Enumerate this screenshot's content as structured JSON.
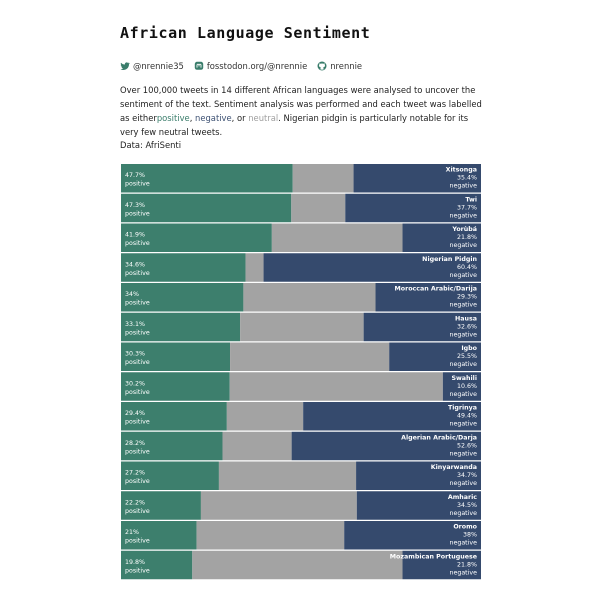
{
  "title": "African Language Sentiment",
  "social": {
    "twitter": "@nrennie35",
    "mastodon": "fosstodon.org/@nrennie",
    "github": "nrennie"
  },
  "description": {
    "intro": "Over 100,000 tweets in 14 different African languages were analysed to uncover the sentiment of the text. Sentiment analysis was performed and each tweet was labelled as either",
    "positive_word": "positive",
    "comma1": ",",
    "negative_word": "negative",
    "or_text": ", or",
    "neutral_word": "neutral",
    "outro": ". Nigerian pidgin is particularly notable for its very few neutral tweets."
  },
  "source": "Data: AfriSenti",
  "colors": {
    "positive": "#3d7f6d",
    "neutral": "#a3a3a3",
    "negative": "#354a6d"
  },
  "chart_data": {
    "type": "bar",
    "orientation": "horizontal-stacked-100",
    "positive_label": "positive",
    "negative_label": "negative",
    "categories": [
      "Xitsonga",
      "Twi",
      "Yorùbá",
      "Nigerian Pidgin",
      "Moroccan Arabic/Darija",
      "Hausa",
      "Igbo",
      "Swahili",
      "Tigrinya",
      "Algerian Arabic/Darja",
      "Kinyarwanda",
      "Amharic",
      "Oromo",
      "Mozambican Portuguese"
    ],
    "series": [
      {
        "name": "positive",
        "values": [
          47.7,
          47.3,
          41.9,
          34.6,
          34,
          33.1,
          30.3,
          30.2,
          29.4,
          28.2,
          27.2,
          22.2,
          21,
          19.8
        ]
      },
      {
        "name": "neutral",
        "values": [
          16.9,
          15.0,
          36.3,
          5.0,
          36.7,
          34.3,
          44.2,
          59.2,
          21.2,
          19.2,
          38.1,
          43.3,
          41.0,
          58.4
        ]
      },
      {
        "name": "negative",
        "values": [
          35.4,
          37.7,
          21.8,
          60.4,
          29.3,
          32.6,
          25.5,
          10.6,
          49.4,
          52.6,
          34.7,
          34.5,
          38,
          21.8
        ]
      }
    ],
    "positive_text": [
      "47.7%",
      "47.3%",
      "41.9%",
      "34.6%",
      "34%",
      "33.1%",
      "30.3%",
      "30.2%",
      "29.4%",
      "28.2%",
      "27.2%",
      "22.2%",
      "21%",
      "19.8%"
    ],
    "negative_text": [
      "35.4%",
      "37.7%",
      "21.8%",
      "60.4%",
      "29.3%",
      "32.6%",
      "25.5%",
      "10.6%",
      "49.4%",
      "52.6%",
      "34.7%",
      "34.5%",
      "38%",
      "21.8%"
    ],
    "xlim": [
      0,
      100
    ]
  }
}
